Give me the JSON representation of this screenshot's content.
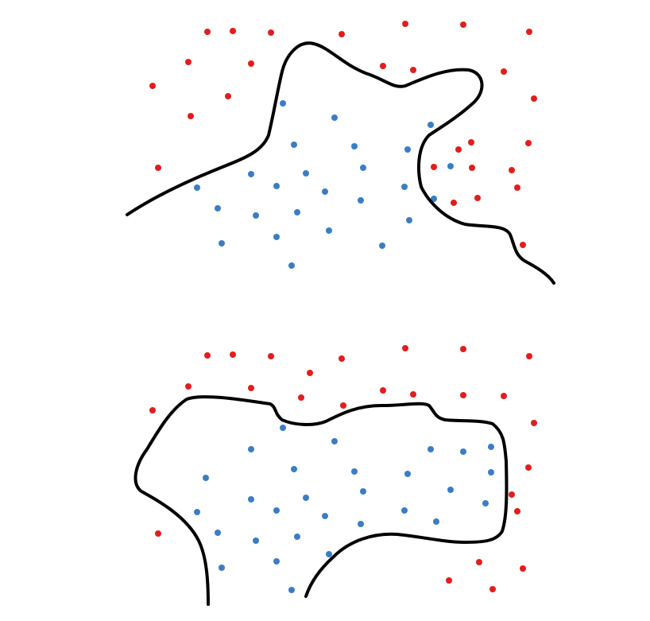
{
  "colors": {
    "class_a": "#e51c1c",
    "class_b": "#3b7dc4",
    "boundary": "#000000",
    "background": "#ffffff"
  },
  "panels": [
    {
      "name": "top-panel",
      "boundary_shape": "irregular open curve separating classes",
      "class_a_points": 33,
      "class_b_points": 30
    },
    {
      "name": "bottom-panel",
      "boundary_shape": "closed-like curve enclosing class_b",
      "class_a_points": 30,
      "class_b_points": 33
    }
  ]
}
